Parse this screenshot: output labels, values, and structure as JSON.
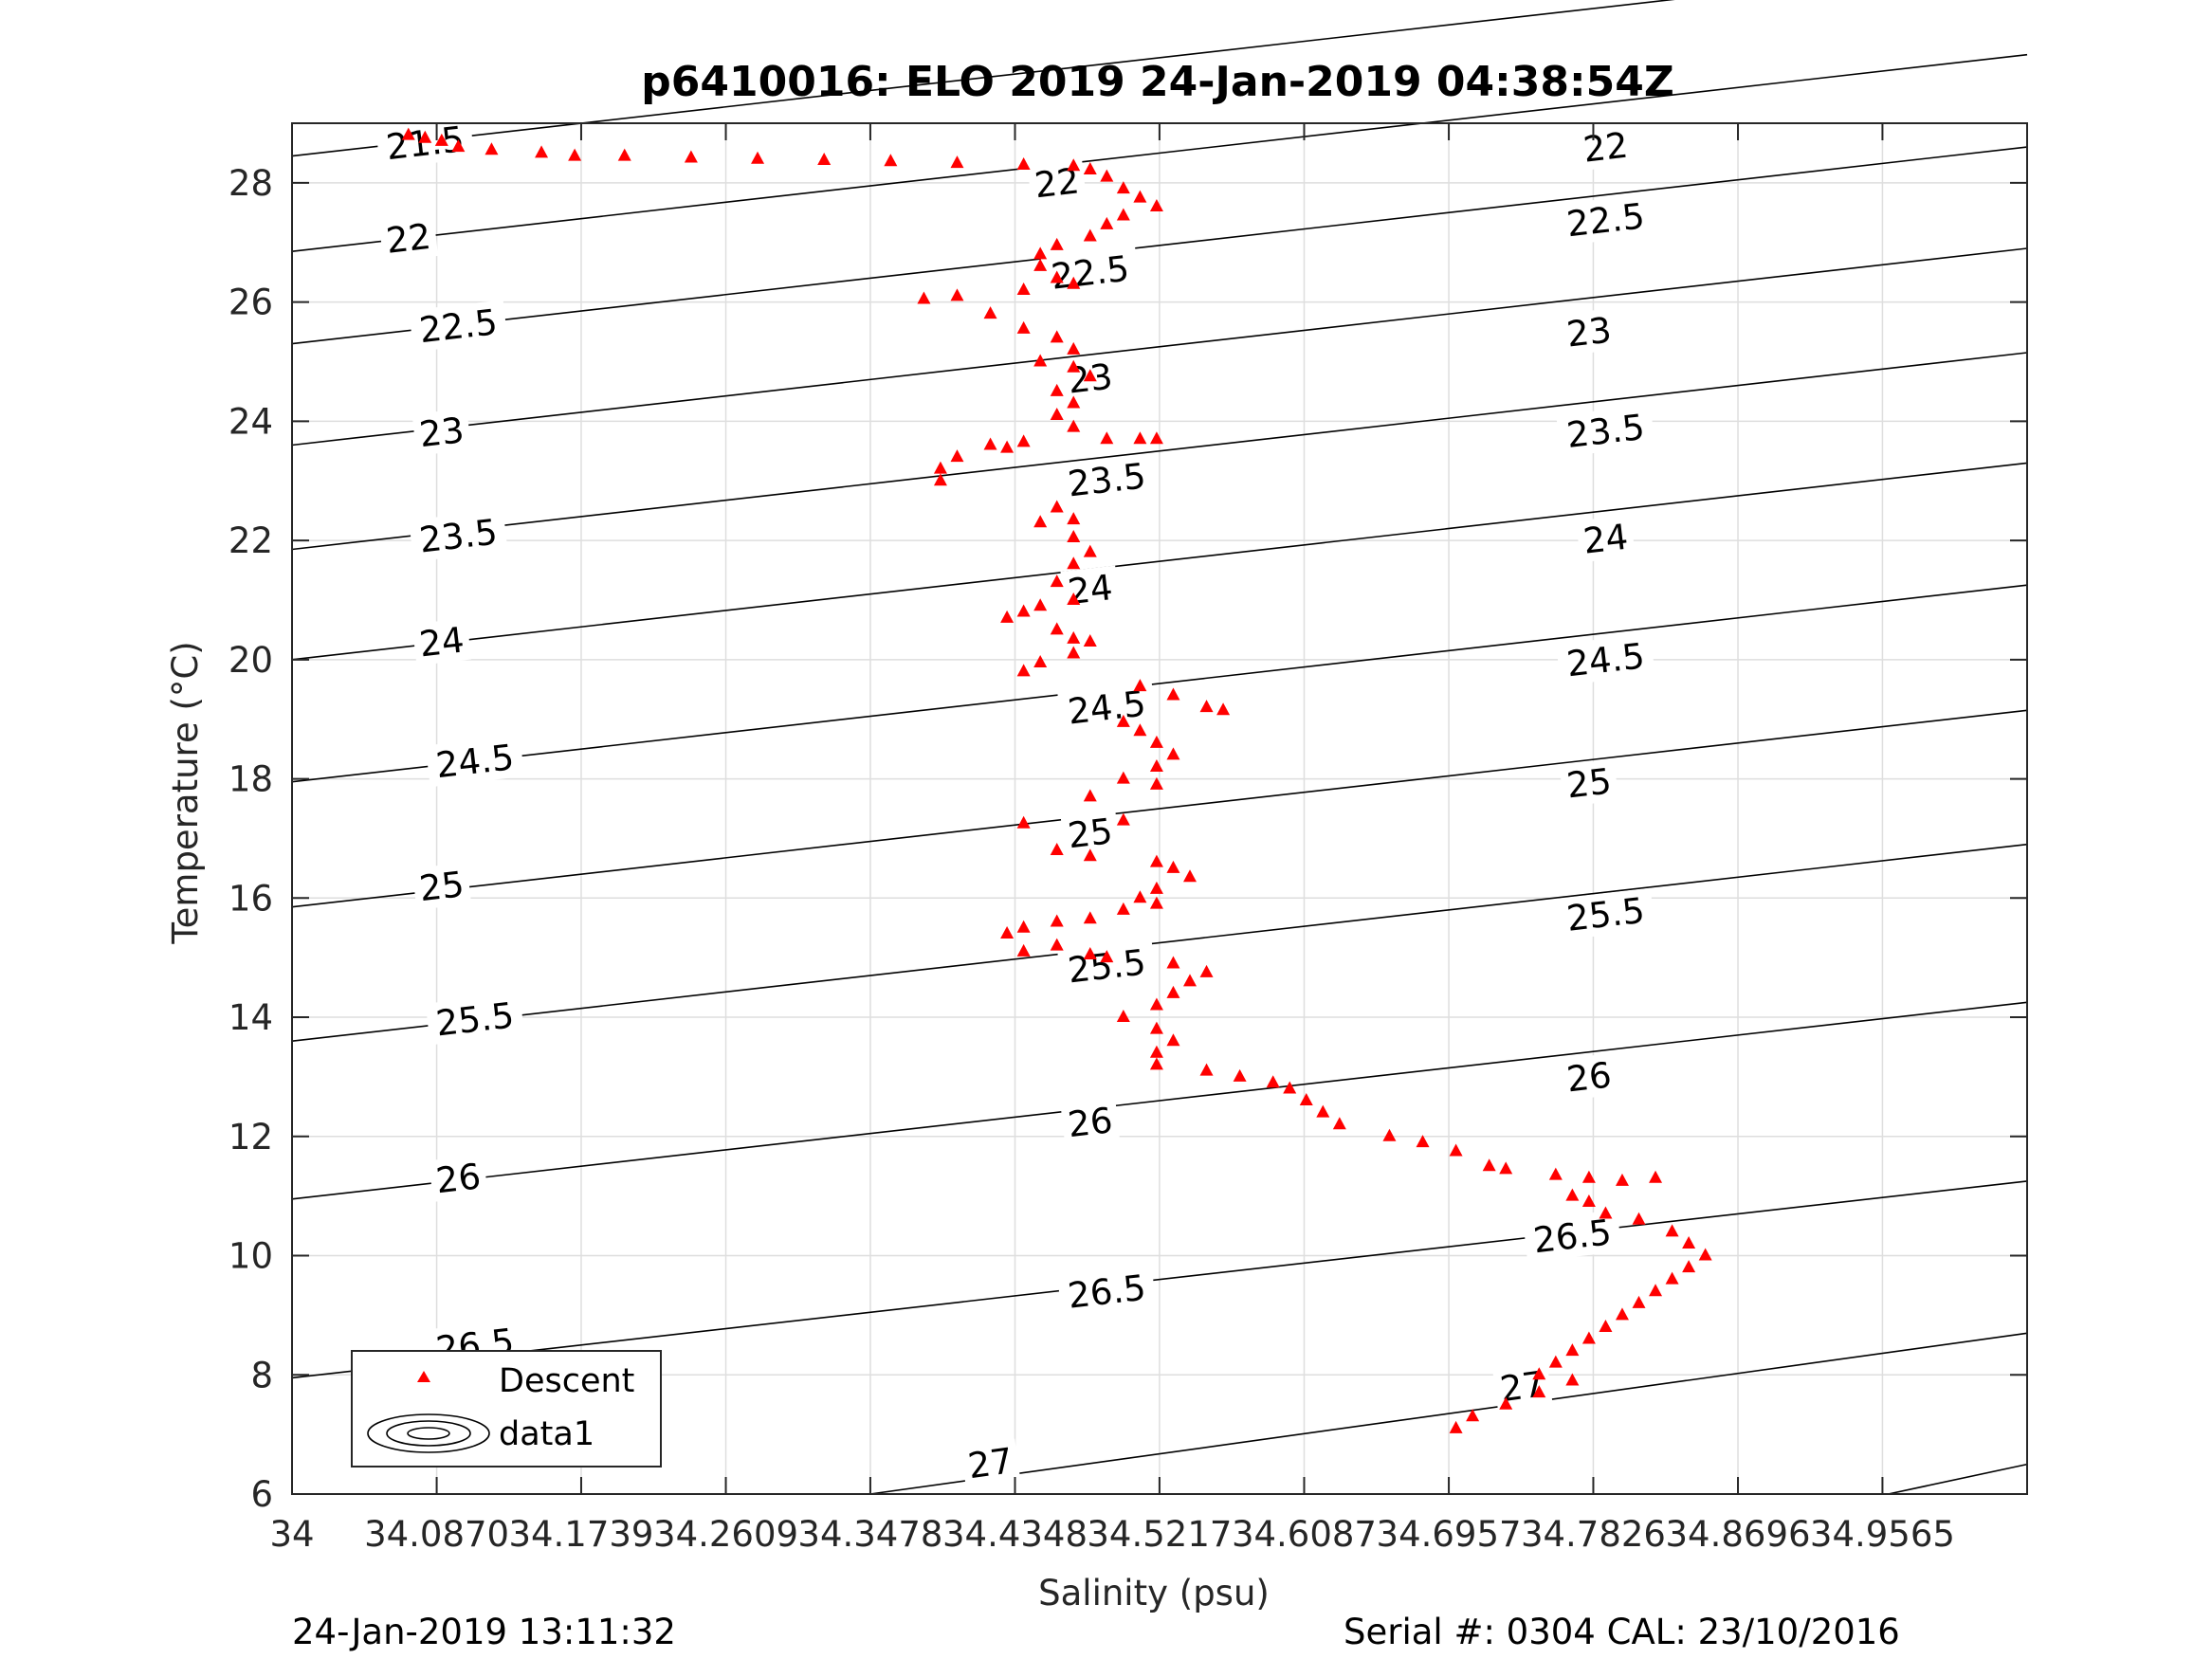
{
  "chart_data": {
    "type": "scatter",
    "title": "p6410016: ELO 2019 24-Jan-2019 04:38:54Z",
    "xlabel": "Salinity (psu)",
    "ylabel": "Temperature (°C)",
    "xlim": [
      34,
      35.0435
    ],
    "ylim": [
      6,
      29
    ],
    "xticks": [
      34,
      34.087,
      34.1739,
      34.2609,
      34.3478,
      34.4348,
      34.5217,
      34.6087,
      34.6957,
      34.7826,
      34.8696,
      34.9565
    ],
    "xtick_labels": [
      "34",
      "34.0870",
      "34.1739",
      "34.2609",
      "34.3478",
      "34.4348",
      "34.5217",
      "34.6087",
      "34.6957",
      "34.7826",
      "34.8696",
      "34.9565"
    ],
    "yticks": [
      6,
      8,
      10,
      12,
      14,
      16,
      18,
      20,
      22,
      24,
      26,
      28
    ],
    "ytick_labels": [
      "6",
      "8",
      "10",
      "12",
      "14",
      "16",
      "18",
      "20",
      "22",
      "24",
      "26",
      "28"
    ],
    "grid": true,
    "legend_position": "bottom-left",
    "legend": [
      {
        "label": "Descent",
        "marker": "triangle",
        "color": "#ff0000"
      },
      {
        "label": "data1",
        "marker": "contour",
        "color": "#000000"
      }
    ],
    "series": [
      {
        "name": "Descent",
        "color": "#ff0000",
        "marker": "triangle",
        "points": [
          [
            34.07,
            28.8
          ],
          [
            34.08,
            28.75
          ],
          [
            34.09,
            28.7
          ],
          [
            34.1,
            28.6
          ],
          [
            34.12,
            28.55
          ],
          [
            34.15,
            28.5
          ],
          [
            34.17,
            28.45
          ],
          [
            34.2,
            28.45
          ],
          [
            34.24,
            28.42
          ],
          [
            34.28,
            28.4
          ],
          [
            34.32,
            28.38
          ],
          [
            34.36,
            28.36
          ],
          [
            34.4,
            28.33
          ],
          [
            34.44,
            28.3
          ],
          [
            34.47,
            28.28
          ],
          [
            34.48,
            28.22
          ],
          [
            34.49,
            28.1
          ],
          [
            34.5,
            27.9
          ],
          [
            34.51,
            27.75
          ],
          [
            34.52,
            27.6
          ],
          [
            34.5,
            27.45
          ],
          [
            34.49,
            27.3
          ],
          [
            34.48,
            27.1
          ],
          [
            34.46,
            26.95
          ],
          [
            34.45,
            26.8
          ],
          [
            34.45,
            26.6
          ],
          [
            34.46,
            26.4
          ],
          [
            34.47,
            26.3
          ],
          [
            34.44,
            26.2
          ],
          [
            34.4,
            26.1
          ],
          [
            34.38,
            26.05
          ],
          [
            34.42,
            25.8
          ],
          [
            34.44,
            25.55
          ],
          [
            34.46,
            25.4
          ],
          [
            34.47,
            25.2
          ],
          [
            34.45,
            25.0
          ],
          [
            34.47,
            24.9
          ],
          [
            34.48,
            24.75
          ],
          [
            34.46,
            24.5
          ],
          [
            34.47,
            24.3
          ],
          [
            34.46,
            24.1
          ],
          [
            34.47,
            23.9
          ],
          [
            34.49,
            23.7
          ],
          [
            34.51,
            23.7
          ],
          [
            34.52,
            23.7
          ],
          [
            34.44,
            23.65
          ],
          [
            34.43,
            23.55
          ],
          [
            34.42,
            23.6
          ],
          [
            34.4,
            23.4
          ],
          [
            34.39,
            23.2
          ],
          [
            34.39,
            23.0
          ],
          [
            34.46,
            22.55
          ],
          [
            34.47,
            22.35
          ],
          [
            34.45,
            22.3
          ],
          [
            34.47,
            22.05
          ],
          [
            34.48,
            21.8
          ],
          [
            34.47,
            21.6
          ],
          [
            34.46,
            21.3
          ],
          [
            34.47,
            21.0
          ],
          [
            34.45,
            20.9
          ],
          [
            34.44,
            20.8
          ],
          [
            34.43,
            20.7
          ],
          [
            34.46,
            20.5
          ],
          [
            34.47,
            20.35
          ],
          [
            34.48,
            20.3
          ],
          [
            34.47,
            20.1
          ],
          [
            34.45,
            19.95
          ],
          [
            34.44,
            19.8
          ],
          [
            34.51,
            19.55
          ],
          [
            34.53,
            19.4
          ],
          [
            34.55,
            19.2
          ],
          [
            34.56,
            19.15
          ],
          [
            34.5,
            18.95
          ],
          [
            34.51,
            18.8
          ],
          [
            34.52,
            18.6
          ],
          [
            34.53,
            18.4
          ],
          [
            34.52,
            18.2
          ],
          [
            34.5,
            18.0
          ],
          [
            34.52,
            17.9
          ],
          [
            34.48,
            17.7
          ],
          [
            34.5,
            17.3
          ],
          [
            34.44,
            17.25
          ],
          [
            34.46,
            16.8
          ],
          [
            34.48,
            16.7
          ],
          [
            34.52,
            16.6
          ],
          [
            34.53,
            16.5
          ],
          [
            34.54,
            16.35
          ],
          [
            34.52,
            16.15
          ],
          [
            34.51,
            16.0
          ],
          [
            34.52,
            15.9
          ],
          [
            34.5,
            15.8
          ],
          [
            34.48,
            15.65
          ],
          [
            34.46,
            15.6
          ],
          [
            34.44,
            15.5
          ],
          [
            34.43,
            15.4
          ],
          [
            34.46,
            15.2
          ],
          [
            34.44,
            15.1
          ],
          [
            34.48,
            15.05
          ],
          [
            34.49,
            15.0
          ],
          [
            34.53,
            14.9
          ],
          [
            34.55,
            14.75
          ],
          [
            34.54,
            14.6
          ],
          [
            34.53,
            14.4
          ],
          [
            34.52,
            14.2
          ],
          [
            34.5,
            14.0
          ],
          [
            34.52,
            13.8
          ],
          [
            34.53,
            13.6
          ],
          [
            34.52,
            13.4
          ],
          [
            34.52,
            13.2
          ],
          [
            34.55,
            13.1
          ],
          [
            34.57,
            13.0
          ],
          [
            34.59,
            12.9
          ],
          [
            34.6,
            12.8
          ],
          [
            34.61,
            12.6
          ],
          [
            34.62,
            12.4
          ],
          [
            34.63,
            12.2
          ],
          [
            34.66,
            12.0
          ],
          [
            34.68,
            11.9
          ],
          [
            34.7,
            11.75
          ],
          [
            34.72,
            11.5
          ],
          [
            34.73,
            11.45
          ],
          [
            34.76,
            11.35
          ],
          [
            34.78,
            11.3
          ],
          [
            34.8,
            11.25
          ],
          [
            34.82,
            11.3
          ],
          [
            34.77,
            11.0
          ],
          [
            34.78,
            10.9
          ],
          [
            34.79,
            10.7
          ],
          [
            34.81,
            10.6
          ],
          [
            34.83,
            10.4
          ],
          [
            34.84,
            10.2
          ],
          [
            34.85,
            10.0
          ],
          [
            34.84,
            9.8
          ],
          [
            34.83,
            9.6
          ],
          [
            34.82,
            9.4
          ],
          [
            34.81,
            9.2
          ],
          [
            34.8,
            9.0
          ],
          [
            34.79,
            8.8
          ],
          [
            34.78,
            8.6
          ],
          [
            34.77,
            8.4
          ],
          [
            34.76,
            8.2
          ],
          [
            34.75,
            8.0
          ],
          [
            34.77,
            7.9
          ],
          [
            34.75,
            7.7
          ],
          [
            34.73,
            7.5
          ],
          [
            34.71,
            7.3
          ],
          [
            34.7,
            7.1
          ]
        ]
      },
      {
        "name": "data1",
        "type": "contour",
        "color": "#000000",
        "levels": [
          {
            "label": "21.5",
            "lines": [
              [
                [
                  34,
                  28.45
                ],
                [
                  35.0435,
                  31.75
                ]
              ]
            ],
            "label_positions": [
              [
                34.08,
                28.67
              ]
            ]
          },
          {
            "label": "22",
            "lines": [
              [
                [
                  34,
                  26.85
                ],
                [
                  35.0435,
                  30.15
                ]
              ]
            ],
            "label_positions": [
              [
                34.07,
                27.07
              ],
              [
                34.46,
                28.0
              ],
              [
                34.79,
                28.6
              ]
            ]
          },
          {
            "label": "22.5",
            "lines": [
              [
                [
                  34,
                  25.3
                ],
                [
                  35.0435,
                  28.6
                ]
              ]
            ],
            "label_positions": [
              [
                34.1,
                25.6
              ],
              [
                34.48,
                26.5
              ],
              [
                34.79,
                27.38
              ]
            ]
          },
          {
            "label": "23",
            "lines": [
              [
                [
                  34,
                  23.6
                ],
                [
                  35.0435,
                  26.9
                ]
              ]
            ],
            "label_positions": [
              [
                34.09,
                23.82
              ],
              [
                34.48,
                24.72
              ],
              [
                34.78,
                25.5
              ]
            ]
          },
          {
            "label": "23.5",
            "lines": [
              [
                [
                  34,
                  21.85
                ],
                [
                  35.0435,
                  25.15
                ]
              ]
            ],
            "label_positions": [
              [
                34.1,
                22.08
              ],
              [
                34.49,
                23.02
              ],
              [
                34.79,
                23.84
              ]
            ]
          },
          {
            "label": "24",
            "lines": [
              [
                [
                  34,
                  20.0
                ],
                [
                  35.0435,
                  23.3
                ]
              ]
            ],
            "label_positions": [
              [
                34.09,
                20.3
              ],
              [
                34.48,
                21.18
              ],
              [
                34.79,
                22.03
              ]
            ]
          },
          {
            "label": "24.5",
            "lines": [
              [
                [
                  34,
                  17.95
                ],
                [
                  35.0435,
                  21.25
                ]
              ]
            ],
            "label_positions": [
              [
                34.11,
                18.3
              ],
              [
                34.49,
                19.2
              ],
              [
                34.79,
                20.0
              ]
            ]
          },
          {
            "label": "25",
            "lines": [
              [
                [
                  34,
                  15.85
                ],
                [
                  35.0435,
                  19.15
                ]
              ]
            ],
            "label_positions": [
              [
                34.09,
                16.2
              ],
              [
                34.48,
                17.09
              ],
              [
                34.78,
                17.93
              ]
            ]
          },
          {
            "label": "25.5",
            "lines": [
              [
                [
                  34,
                  13.6
                ],
                [
                  35.0435,
                  16.9
                ]
              ]
            ],
            "label_positions": [
              [
                34.11,
                13.97
              ],
              [
                34.49,
                14.86
              ],
              [
                34.79,
                15.73
              ]
            ]
          },
          {
            "label": "26",
            "lines": [
              [
                [
                  34,
                  10.95
                ],
                [
                  35.0435,
                  14.25
                ]
              ]
            ],
            "label_positions": [
              [
                34.1,
                11.3
              ],
              [
                34.48,
                12.24
              ],
              [
                34.78,
                13.0
              ]
            ]
          },
          {
            "label": "26.5",
            "lines": [
              [
                [
                  34,
                  7.95
                ],
                [
                  35.0435,
                  11.25
                ]
              ]
            ],
            "label_positions": [
              [
                34.11,
                8.5
              ],
              [
                34.49,
                9.4
              ],
              [
                34.77,
                10.33
              ]
            ]
          },
          {
            "label": "27",
            "lines": [
              [
                [
                  34.3478,
                  6.0
                ],
                [
                  35.0435,
                  8.7
                ]
              ]
            ],
            "label_positions": [
              [
                34.42,
                6.52
              ],
              [
                34.74,
                7.81
              ]
            ]
          },
          {
            "label": "",
            "lines": [
              [
                [
                  34.96,
                  6.0
                ],
                [
                  35.0435,
                  6.5
                ]
              ]
            ],
            "label_positions": []
          }
        ]
      }
    ]
  },
  "footer": {
    "left": "24-Jan-2019 13:11:32",
    "right": "Serial #: 0304  CAL: 23/10/2016"
  }
}
